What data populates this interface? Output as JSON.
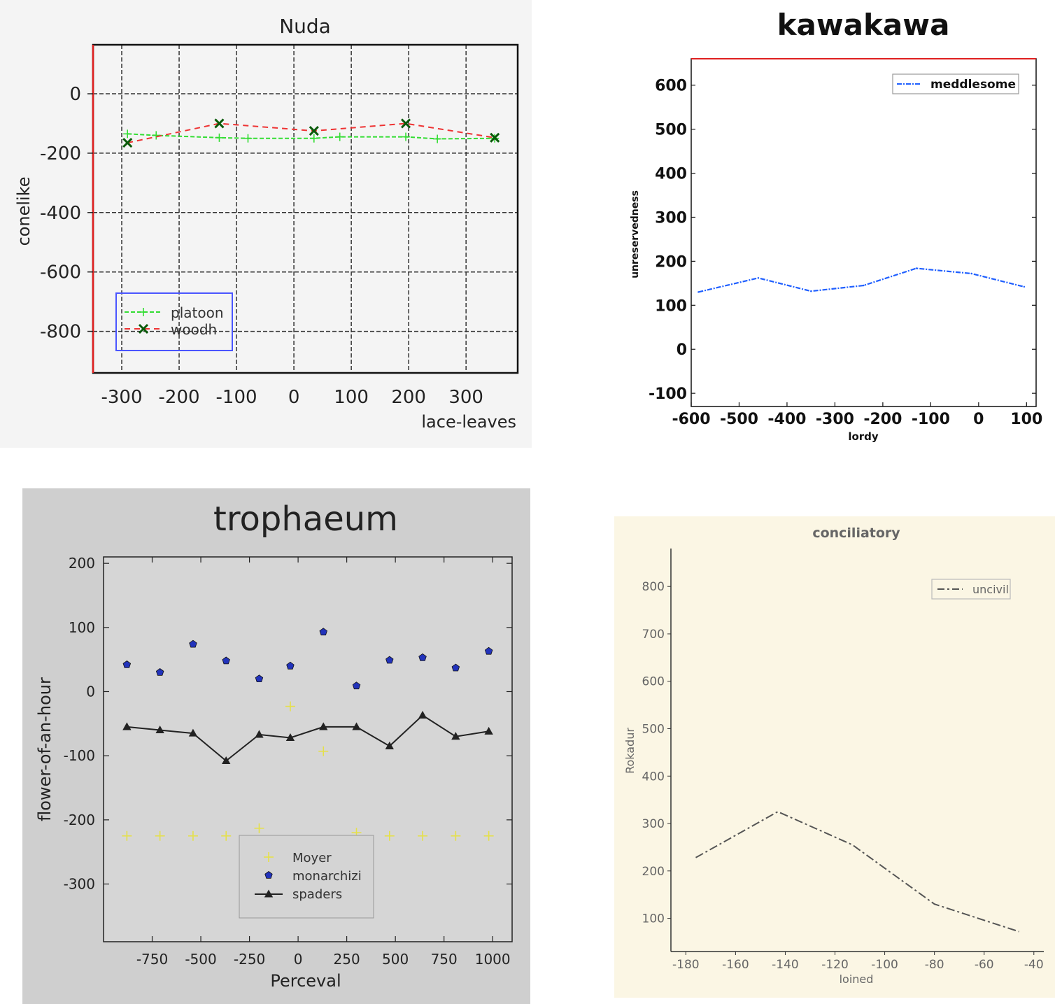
{
  "chart_data": [
    {
      "type": "line",
      "title": "Nuda",
      "xlabel": "lace-leaves",
      "ylabel": "conelike",
      "xlim": [
        -350,
        390
      ],
      "ylim": [
        -940,
        165
      ],
      "xticks": [
        -300,
        -200,
        -100,
        0,
        100,
        200,
        300
      ],
      "yticks": [
        0,
        -200,
        -400,
        -600,
        -800
      ],
      "grid": true,
      "legend": "lower-left",
      "series": [
        {
          "name": "platoon",
          "color": "#33dd33",
          "x": [
            -290,
            -240,
            -130,
            -80,
            35,
            80,
            195,
            250,
            350
          ],
          "y": [
            -135,
            -140,
            -148,
            -150,
            -150,
            -145,
            -145,
            -152,
            -150
          ]
        },
        {
          "name": "woodh",
          "color": "#ee3333",
          "x": [
            -290,
            -130,
            35,
            195,
            350
          ],
          "y": [
            -165,
            -100,
            -125,
            -100,
            -148
          ]
        }
      ]
    },
    {
      "type": "line",
      "title": "kawakawa",
      "xlabel": "lordy",
      "ylabel": "unreservedness",
      "xlim": [
        -600,
        120
      ],
      "ylim": [
        -130,
        660
      ],
      "xticks": [
        -600,
        -500,
        -400,
        -300,
        -200,
        -100,
        0,
        100
      ],
      "yticks": [
        -100,
        0,
        100,
        200,
        300,
        400,
        500,
        600
      ],
      "legend": "top-right",
      "series": [
        {
          "name": "meddlesome",
          "color": "#1f5fff",
          "x": [
            -585,
            -460,
            -350,
            -240,
            -130,
            -15,
            95
          ],
          "y": [
            130,
            162,
            132,
            145,
            184,
            172,
            142
          ]
        }
      ]
    },
    {
      "type": "scatter",
      "title": "trophaeum",
      "xlabel": "Perceval",
      "ylabel": "flower-of-an-hour",
      "xlim": [
        -1000,
        1100
      ],
      "ylim": [
        -390,
        210
      ],
      "xticks": [
        -750,
        -500,
        -250,
        0,
        250,
        500,
        750,
        1000
      ],
      "yticks": [
        200,
        100,
        0,
        -100,
        -200,
        -300
      ],
      "legend": "lower-center",
      "series": [
        {
          "name": "Moyer",
          "color": "#e5e04a",
          "marker": "plus",
          "x": [
            -880,
            -710,
            -540,
            -370,
            -200,
            -40,
            130,
            300,
            470,
            640,
            810,
            980
          ],
          "y": [
            -225,
            -225,
            -225,
            -225,
            -213,
            -23,
            -93,
            -220,
            -225,
            -225,
            -225,
            -225
          ]
        },
        {
          "name": "monarchizi",
          "color": "#2233bb",
          "marker": "pentagon",
          "x": [
            -880,
            -710,
            -540,
            -370,
            -200,
            -40,
            130,
            300,
            470,
            640,
            810,
            980
          ],
          "y": [
            42,
            30,
            74,
            48,
            20,
            40,
            93,
            9,
            49,
            53,
            37,
            63
          ]
        },
        {
          "name": "spaders",
          "color": "#222222",
          "marker": "triangle",
          "x": [
            -880,
            -710,
            -540,
            -370,
            -200,
            -40,
            130,
            300,
            470,
            640,
            810,
            980
          ],
          "y": [
            -55,
            -60,
            -65,
            -108,
            -67,
            -72,
            -55,
            -55,
            -85,
            -37,
            -70,
            -62
          ]
        }
      ]
    },
    {
      "type": "line",
      "title": "conciliatory",
      "xlabel": "loined",
      "ylabel": "Rokadur",
      "xlim": [
        -186,
        -36
      ],
      "ylim": [
        30,
        880
      ],
      "xticks": [
        -180,
        -160,
        -140,
        -120,
        -100,
        -80,
        -60,
        -40
      ],
      "yticks": [
        100,
        200,
        300,
        400,
        500,
        600,
        700,
        800
      ],
      "legend": "top-right",
      "series": [
        {
          "name": "uncivil",
          "color": "#555555",
          "x": [
            -176,
            -143,
            -113,
            -80,
            -46
          ],
          "y": [
            228,
            325,
            255,
            130,
            72
          ]
        }
      ]
    }
  ]
}
